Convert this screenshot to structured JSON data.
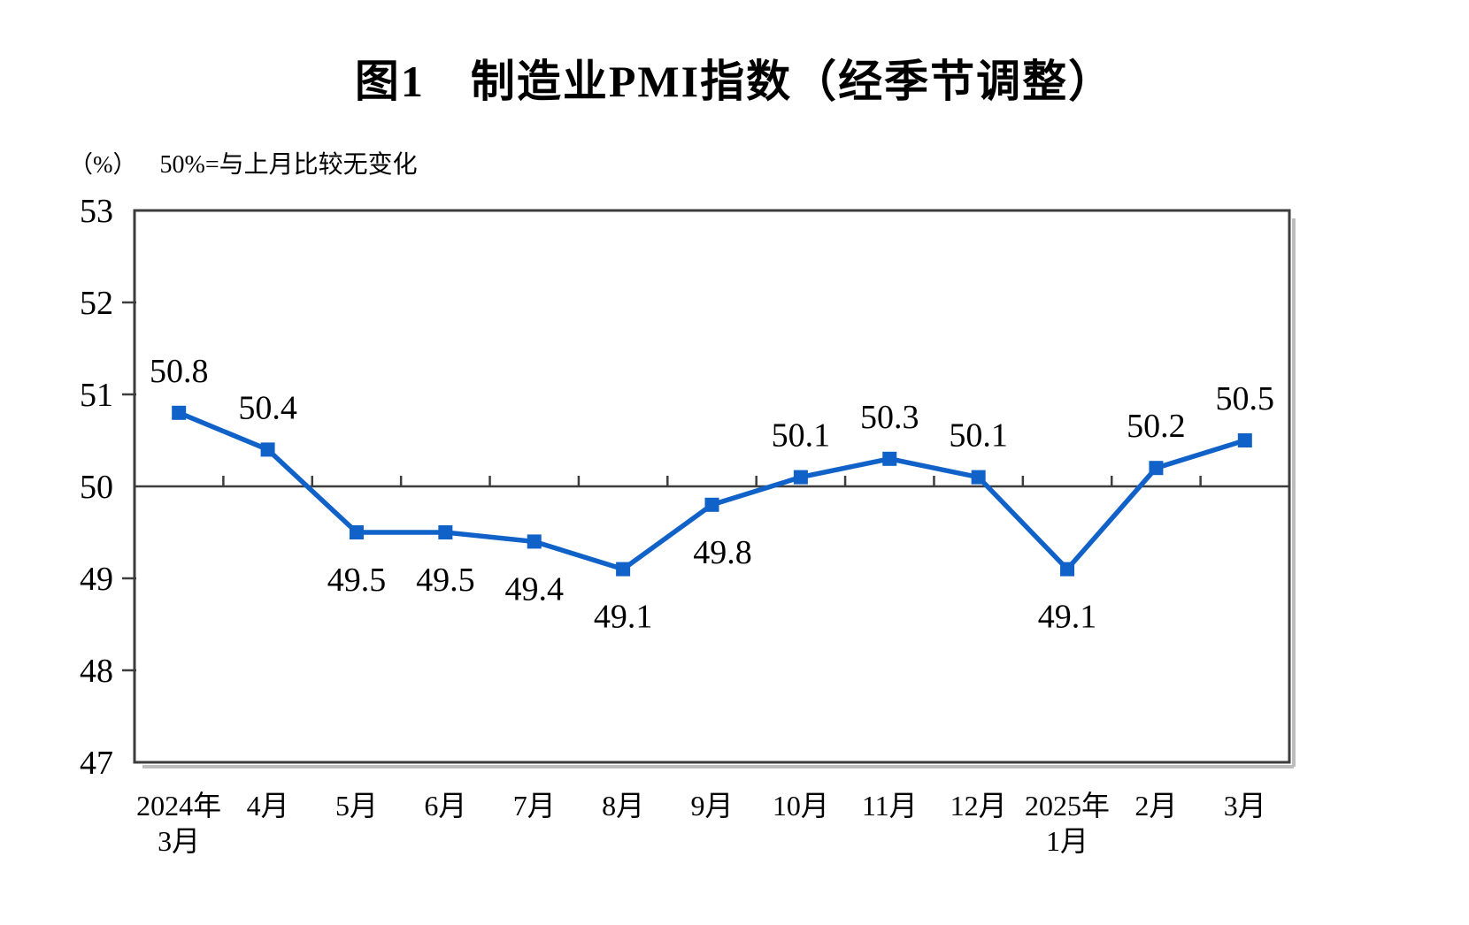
{
  "chart_data": {
    "type": "line",
    "title": "图1　制造业PMI指数（经季节调整）",
    "unit_label": "（%）",
    "subtitle": "50%=与上月比较无变化",
    "categories": [
      [
        "2024年",
        "3月"
      ],
      [
        "4月"
      ],
      [
        "5月"
      ],
      [
        "6月"
      ],
      [
        "7月"
      ],
      [
        "8月"
      ],
      [
        "9月"
      ],
      [
        "10月"
      ],
      [
        "11月"
      ],
      [
        "12月"
      ],
      [
        "2025年",
        "1月"
      ],
      [
        "2月"
      ],
      [
        "3月"
      ]
    ],
    "values": [
      50.8,
      50.4,
      49.5,
      49.5,
      49.4,
      49.1,
      49.8,
      50.1,
      50.3,
      50.1,
      49.1,
      50.2,
      50.5
    ],
    "ylim": [
      47,
      53
    ],
    "y_ticks": [
      47,
      48,
      49,
      50,
      51,
      52,
      53
    ],
    "reference_value": 50,
    "grid": false,
    "legend": false,
    "marker": "square",
    "colors": {
      "line": "#1062c8",
      "axis": "#3d3d3d",
      "shadow": "#bdbdbd",
      "text": "#000000",
      "background": "#ffffff"
    },
    "label_dx": [
      0,
      0,
      0,
      0,
      0,
      0,
      12,
      0,
      0,
      0,
      0,
      0,
      0
    ]
  }
}
